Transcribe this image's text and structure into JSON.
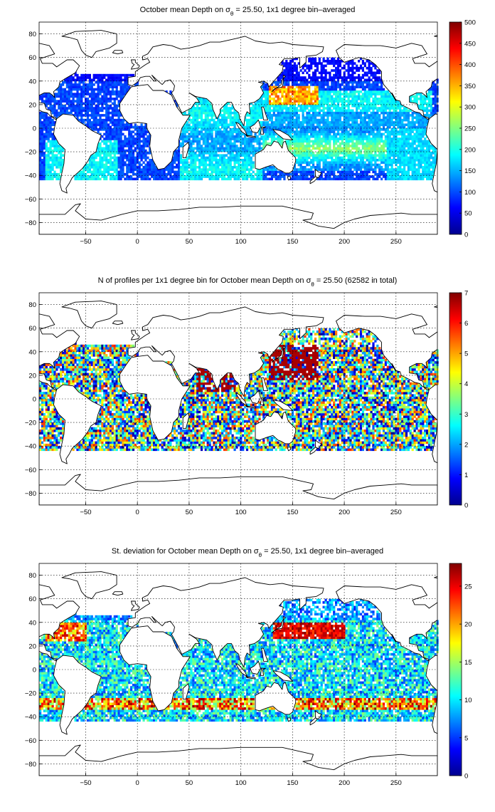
{
  "figure": {
    "palette": [
      "#00008f",
      "#0000ff",
      "#0080ff",
      "#00ffff",
      "#80ff80",
      "#ffff00",
      "#ff8000",
      "#ff0000",
      "#800000"
    ]
  },
  "chart_data": [
    {
      "type": "heatmap",
      "title_parts": [
        "October mean Depth on ",
        "σ",
        "θ",
        " = 25.50, 1x1 degree bin–averaged"
      ],
      "x_ticks": [
        -50,
        0,
        50,
        100,
        150,
        200,
        250
      ],
      "y_ticks": [
        80,
        60,
        40,
        20,
        0,
        -20,
        -40,
        -60,
        -80
      ],
      "xlim": [
        -95,
        290
      ],
      "ylim": [
        -90,
        90
      ],
      "colorbar": {
        "min": 0,
        "max": 500,
        "ticks": [
          500,
          450,
          400,
          350,
          300,
          250,
          200,
          150,
          100,
          50,
          0
        ]
      },
      "grid": true,
      "field": "depth"
    },
    {
      "type": "heatmap",
      "title_parts": [
        "N of profiles per 1x1 degree bin for October mean Depth on ",
        "σ",
        "θ",
        " = 25.50 (62582 in total)"
      ],
      "x_ticks": [
        -50,
        0,
        50,
        100,
        150,
        200,
        250
      ],
      "y_ticks": [
        80,
        60,
        40,
        20,
        0,
        -20,
        -40,
        -60,
        -80
      ],
      "xlim": [
        -95,
        290
      ],
      "ylim": [
        -90,
        90
      ],
      "colorbar": {
        "min": 0,
        "max": 7,
        "ticks": [
          7,
          6,
          5,
          4,
          3,
          2,
          1,
          0
        ]
      },
      "grid": true,
      "field": "count"
    },
    {
      "type": "heatmap",
      "title_parts": [
        "St. deviation for October mean Depth on ",
        "σ",
        "θ",
        " = 25.50, 1x1 degree bin–averaged"
      ],
      "x_ticks": [
        -50,
        0,
        50,
        100,
        150,
        200,
        250
      ],
      "y_ticks": [
        80,
        60,
        40,
        20,
        0,
        -20,
        -40,
        -60,
        -80
      ],
      "xlim": [
        -95,
        290
      ],
      "ylim": [
        -90,
        90
      ],
      "colorbar": {
        "min": 0,
        "max": 28,
        "ticks": [
          25,
          20,
          15,
          10,
          5,
          0
        ]
      },
      "grid": true,
      "field": "std"
    }
  ]
}
